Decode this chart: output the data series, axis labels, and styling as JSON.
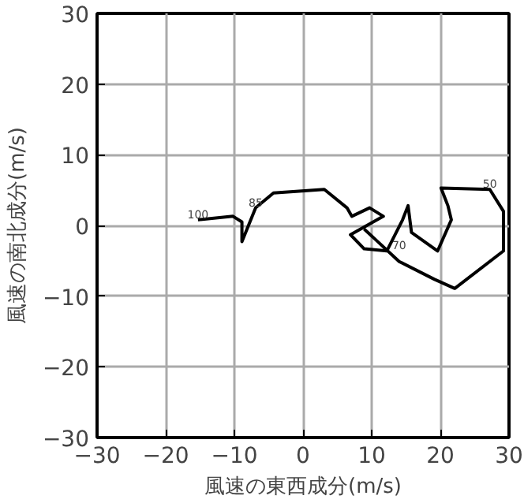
{
  "chart_data": {
    "type": "line",
    "xlabel": "風速の東西成分(m/s)",
    "ylabel": "風速の南北成分(m/s)",
    "x": [
      -15.3,
      -10.2,
      -8.9,
      -8.9,
      -6.9,
      -4.3,
      3.1,
      6.4,
      7.1,
      9.7,
      11.7,
      6.9,
      8.9,
      12.2,
      14.5,
      15.3,
      15.8,
      19.6,
      21.6,
      21.1,
      20.1,
      27.2,
      29.2,
      29.2,
      22.1,
      19.1,
      14.0,
      10.9,
      8.9
    ],
    "series": [
      {
        "color": "#000000",
        "values": [
          0.8,
          1.3,
          0.5,
          -2.3,
          2.5,
          4.6,
          5.1,
          2.5,
          1.3,
          2.5,
          1.3,
          -1.3,
          -3.3,
          -3.6,
          0.8,
          2.8,
          -1.0,
          -3.6,
          0.8,
          2.8,
          5.3,
          5.1,
          2.0,
          -3.6,
          -8.9,
          -7.6,
          -5.1,
          -2.3,
          -0.5
        ]
      }
    ],
    "annotations": [
      {
        "text": "100",
        "x": -15.3,
        "y": 0.8
      },
      {
        "text": "85",
        "x": -6.9,
        "y": 2.5
      },
      {
        "text": "70",
        "x": 14.0,
        "y": -3.6
      },
      {
        "text": "50",
        "x": 27.2,
        "y": 5.1
      }
    ],
    "xlim": [
      -30,
      30
    ],
    "ylim": [
      -30,
      30
    ],
    "xticks": [
      {
        "value": -30,
        "label": "−30"
      },
      {
        "value": -20,
        "label": "−20"
      },
      {
        "value": -10,
        "label": "−10"
      },
      0,
      10,
      20,
      30
    ],
    "yticks": [
      {
        "value": -30,
        "label": "−30"
      },
      {
        "value": -20,
        "label": "−20"
      },
      {
        "value": -10,
        "label": "−10"
      },
      0,
      10,
      20,
      30
    ],
    "grid": true,
    "marker": "none",
    "line_style": "solid"
  }
}
